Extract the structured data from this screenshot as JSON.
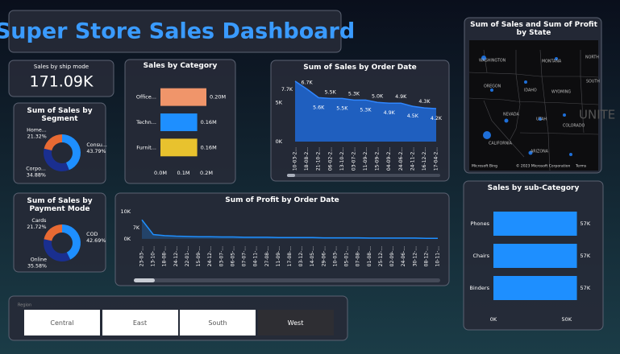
{
  "header": {
    "title": "Super Store Sales Dashboard"
  },
  "kpi": {
    "label": "Sales by ship mode",
    "value": "171.09K"
  },
  "slicer": {
    "label": "Region",
    "options": [
      "Central",
      "East",
      "South",
      "West"
    ],
    "selected": 3
  },
  "map": {
    "title": "Sum of Sales and Sum of Profit by State",
    "labels": [
      "WASHINGTON",
      "MONTANA",
      "NORTH",
      "OREGON",
      "IDAHO",
      "WYOMING",
      "SOUTH",
      "NEVADA",
      "UTAH",
      "COLORADO",
      "CALIFORNIA",
      "ARIZONA",
      "UNITE"
    ],
    "brand": "Microsoft Bing",
    "copyright": "© 2023 Microsoft Corporation",
    "terms": "Terms"
  },
  "chart_data": [
    {
      "type": "bar",
      "orientation": "horizontal",
      "title": "Sales by Category",
      "categories": [
        "Office...",
        "Techn...",
        "Furnit..."
      ],
      "values": [
        0.2,
        0.16,
        0.16
      ],
      "value_labels": [
        "0.20M",
        "0.16M",
        "0.16M"
      ],
      "colors": [
        "#f0956a",
        "#1e8fff",
        "#e8c22e"
      ],
      "xlim": [
        0,
        0.3
      ],
      "xticks": [
        {
          "value": 0,
          "label": "0.0M"
        },
        {
          "value": 0.1,
          "label": "0.1M"
        },
        {
          "value": 0.2,
          "label": "0.2M"
        }
      ]
    },
    {
      "type": "pie",
      "donut": true,
      "title": "Sum of Sales by Segment",
      "categories": [
        "Consu...",
        "Corpo...",
        "Home..."
      ],
      "values": [
        43.79,
        34.88,
        21.32
      ],
      "value_labels": [
        "43.79%",
        "34.88%",
        "21.32%"
      ],
      "colors": [
        "#1e8fff",
        "#1a2f8f",
        "#e86a33"
      ]
    },
    {
      "type": "pie",
      "donut": true,
      "title": "Sum of Sales by Payment Mode",
      "categories": [
        "COD",
        "Online",
        "Cards"
      ],
      "values": [
        42.69,
        35.58,
        21.72
      ],
      "value_labels": [
        "42.69%",
        "35.58%",
        "21.72%"
      ],
      "colors": [
        "#1e8fff",
        "#1a2f8f",
        "#e86a33"
      ]
    },
    {
      "type": "area",
      "title": "Sum of Sales by Order Date",
      "categories": [
        "10-03-2...",
        "18-08-2...",
        "21-10-2...",
        "06-02-2...",
        "13-10-2...",
        "03-07-2...",
        "11-09-2...",
        "15-09-2...",
        "04-09-2...",
        "24-06-2...",
        "24-11-2...",
        "16-12-2...",
        "17-04-2..."
      ],
      "values": [
        7.7,
        6.7,
        5.6,
        5.5,
        5.5,
        5.3,
        5.3,
        5.0,
        4.9,
        4.9,
        4.5,
        4.3,
        4.2
      ],
      "value_labels": [
        "7.7K",
        "6.7K",
        "5.6K",
        "5.5K",
        "5.5K",
        "5.3K",
        "5.3K",
        "5.0K",
        "4.9K",
        "4.9K",
        "4.5K",
        "4.3K",
        "4.2K"
      ],
      "color": "#1f5fbf",
      "ylim": [
        0,
        8
      ],
      "yticks": [
        {
          "value": 0,
          "label": "0K"
        },
        {
          "value": 5,
          "label": "5K"
        }
      ]
    },
    {
      "type": "line",
      "title": "Sum of Profit by Order Date",
      "categories": [
        "23-03-...",
        "13-10-...",
        "18-08-...",
        "24-12-...",
        "22-01-...",
        "15-09-...",
        "24-12-...",
        "03-07-...",
        "06-05-...",
        "07-07-...",
        "04-11-...",
        "27-08-...",
        "11-09-...",
        "17-08-...",
        "03-12-...",
        "14-05-...",
        "29-06-...",
        "10-03-...",
        "05-01-...",
        "07-08-...",
        "01-08-...",
        "25-12-...",
        "02-09-...",
        "24-06-...",
        "30-12-...",
        "08-12-...",
        "10-11-..."
      ],
      "values": [
        7,
        1.6,
        1.2,
        1.0,
        0.9,
        0.8,
        0.8,
        0.7,
        0.7,
        0.6,
        0.6,
        0.6,
        0.5,
        0.5,
        0.5,
        0.5,
        0.4,
        0.4,
        0.4,
        0.4,
        0.3,
        0.3,
        0.3,
        0.3,
        0.3,
        0.2,
        0.2
      ],
      "value_labels": [
        "7K",
        null,
        null,
        null,
        null,
        null,
        null,
        null,
        null,
        null,
        null,
        null,
        null,
        null,
        null,
        null,
        null,
        null,
        null,
        null,
        null,
        null,
        null,
        null,
        null,
        null,
        null
      ],
      "color": "#1e8fff",
      "ylim": [
        -1.5,
        11.5
      ],
      "yticks": [
        {
          "value": 0,
          "label": "0K"
        },
        {
          "value": 10,
          "label": "10K"
        }
      ]
    },
    {
      "type": "bar",
      "orientation": "horizontal",
      "title": "Sales by sub-Category",
      "categories": [
        "Phones",
        "Chairs",
        "Binders"
      ],
      "values": [
        57,
        57,
        57
      ],
      "value_labels": [
        "57K",
        "57K",
        "57K"
      ],
      "colors": [
        "#1e8fff",
        "#1e8fff",
        "#1e8fff"
      ],
      "xlim": [
        0,
        60
      ],
      "xticks": [
        {
          "value": 0,
          "label": "0K"
        },
        {
          "value": 50,
          "label": "50K"
        }
      ]
    }
  ]
}
